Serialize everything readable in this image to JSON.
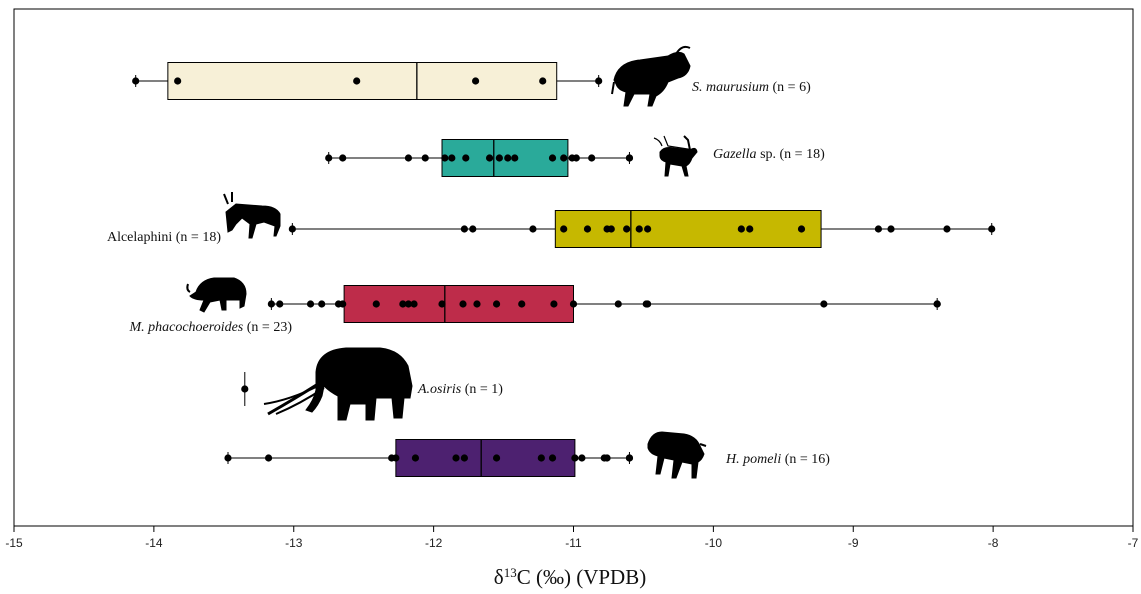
{
  "chart_data": {
    "type": "box",
    "xlabel_parts": [
      "δ",
      "13",
      "C (‰) (VPDB)"
    ],
    "xlim": [
      -15,
      -7
    ],
    "xticks": [
      -15,
      -14,
      -13,
      -12,
      -11,
      -10,
      -9,
      -8,
      -7
    ],
    "grid": false,
    "series": [
      {
        "taxon": "S. maurusium",
        "n_label": "(n = 6)",
        "color": "#f7f0d7",
        "silhouette": "bovid-icon",
        "label_side": "right",
        "whisker": [
          -14.13,
          -10.82
        ],
        "box": [
          -13.9,
          -11.12
        ],
        "median": -12.12,
        "points": [
          -14.13,
          -13.83,
          -12.55,
          -11.7,
          -11.22,
          -10.82
        ]
      },
      {
        "taxon": "Gazella",
        "suffix": " sp.",
        "n_label": "(n = 18)",
        "color": "#2aaa9a",
        "silhouette": "gazelle-icon",
        "label_side": "right",
        "whisker": [
          -12.75,
          -10.6
        ],
        "box": [
          -11.94,
          -11.04
        ],
        "median": -11.57,
        "points": [
          -12.75,
          -12.65,
          -12.18,
          -12.06,
          -11.92,
          -11.87,
          -11.77,
          -11.6,
          -11.53,
          -11.47,
          -11.42,
          -11.15,
          -11.07,
          -11.01,
          -10.98,
          -10.87,
          -10.6,
          -10.6
        ]
      },
      {
        "taxon": "Alcelaphini",
        "n_label": "(n = 18)",
        "color": "#c6b800",
        "silhouette": "alcelaphine-icon",
        "label_side": "left",
        "whisker": [
          -13.01,
          -8.01
        ],
        "box": [
          -11.13,
          -9.23
        ],
        "median": -10.59,
        "points": [
          -13.01,
          -11.78,
          -11.72,
          -11.29,
          -11.07,
          -10.9,
          -10.76,
          -10.73,
          -10.62,
          -10.53,
          -10.47,
          -9.8,
          -9.74,
          -9.37,
          -8.82,
          -8.73,
          -8.33,
          -8.01
        ]
      },
      {
        "taxon": "M. phacochoeroides",
        "n_label": "(n = 23)",
        "color": "#be2c4a",
        "silhouette": "suid-icon",
        "label_side": "below-left",
        "whisker": [
          -13.16,
          -8.4
        ],
        "box": [
          -12.64,
          -11.0
        ],
        "median": -11.92,
        "points": [
          -13.16,
          -13.1,
          -12.88,
          -12.8,
          -12.68,
          -12.65,
          -12.41,
          -12.22,
          -12.18,
          -12.14,
          -11.94,
          -11.79,
          -11.69,
          -11.55,
          -11.37,
          -11.14,
          -11.0,
          -10.68,
          -10.48,
          -10.47,
          -9.21,
          -8.4,
          -8.4
        ]
      },
      {
        "taxon": "A.osiris",
        "n_label": "(n = 1)",
        "color": "#000000",
        "silhouette": "elephant-icon",
        "label_side": "right",
        "whisker": [
          -13.35,
          -13.35
        ],
        "box": null,
        "median": null,
        "points": [
          -13.35
        ]
      },
      {
        "taxon": "H. pomeli",
        "n_label": "(n = 16)",
        "color": "#4d2170",
        "silhouette": "equid-icon",
        "label_side": "right",
        "whisker": [
          -13.47,
          -10.6
        ],
        "box": [
          -12.27,
          -10.99
        ],
        "median": -11.66,
        "points": [
          -13.47,
          -13.18,
          -12.3,
          -12.27,
          -12.13,
          -11.84,
          -11.78,
          -11.55,
          -11.23,
          -11.15,
          -10.99,
          -10.94,
          -10.78,
          -10.76,
          -10.6,
          -10.6
        ]
      }
    ]
  }
}
